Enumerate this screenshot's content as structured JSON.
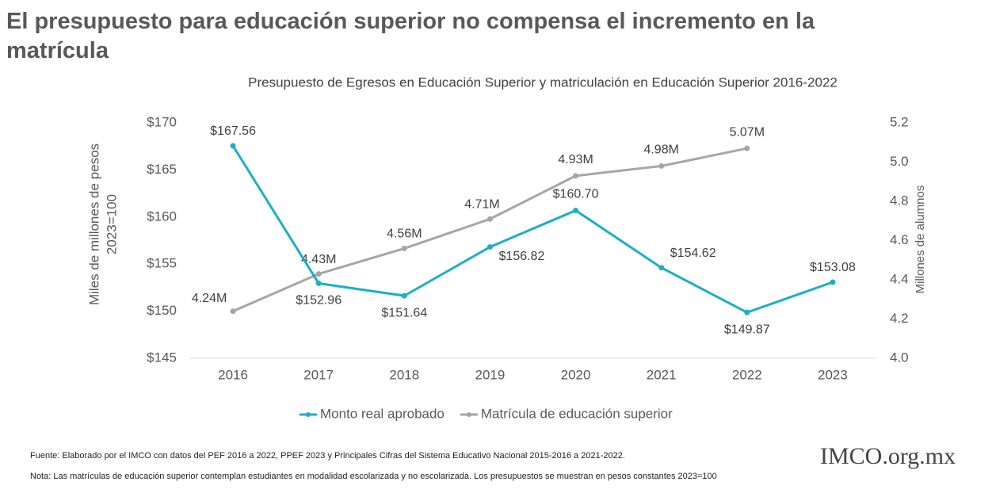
{
  "chart_data": {
    "type": "line",
    "title": "El presupuesto para educación superior no compensa el incremento en la matrícula",
    "subtitle": "Presupuesto de Egresos en Educación Superior y matriculación en Educación Superior 2016-2022",
    "ylabel": [
      "Miles de millones de pesos",
      "2023=100"
    ],
    "y2label": "Millones de alumnos",
    "categories": [
      "2016",
      "2017",
      "2018",
      "2019",
      "2020",
      "2021",
      "2022",
      "2023"
    ],
    "series": [
      {
        "name": "Monto real aprobado",
        "color": "#1aafc6",
        "values": [
          167.56,
          152.96,
          151.64,
          156.82,
          160.7,
          154.62,
          149.87,
          153.08
        ],
        "value_labels": [
          "$167.56",
          "$152.96",
          "$151.64",
          "$156.82",
          "$160.70",
          "$154.62",
          "$149.87",
          "$153.08"
        ]
      },
      {
        "name": "Matrícula de educación superior",
        "color": "#a6a6a6",
        "axis": "y2",
        "values": [
          4.24,
          4.43,
          4.56,
          4.71,
          4.93,
          4.98,
          5.07,
          null
        ],
        "value_labels": [
          "4.24M",
          "4.43M",
          "4.56M",
          "4.71M",
          "4.93M",
          "4.98M",
          "5.07M",
          null
        ]
      }
    ],
    "ylim": [
      145,
      170
    ],
    "yticks": [
      {
        "value": 145,
        "label": "$145"
      },
      {
        "value": 150,
        "label": "$150"
      },
      {
        "value": 155,
        "label": "$155"
      },
      {
        "value": 160,
        "label": "$160"
      },
      {
        "value": 165,
        "label": "$165"
      },
      {
        "value": 170,
        "label": "$170"
      }
    ],
    "y2lim": [
      4.0,
      5.2
    ],
    "y2ticks": [
      {
        "value": 4.0,
        "label": "4.0"
      },
      4.2,
      4.4,
      4.6,
      4.8,
      {
        "value": 5.0,
        "label": "5.0"
      },
      5.2
    ],
    "legend": "bottom",
    "source": "Fuente: Elaborado por el IMCO con datos del PEF 2016 a 2022, PPEF 2023 y Principales Cifras del Sistema Educativo Nacional 2015-2016 a 2021-2022.",
    "note": "Nota: Las matrículas de educación superior contemplan estudiantes en modalidad escolarizada y no escolarizada. Los presupuestos se muestran en pesos constantes 2023=100",
    "logo": "IMCO.org.mx"
  }
}
